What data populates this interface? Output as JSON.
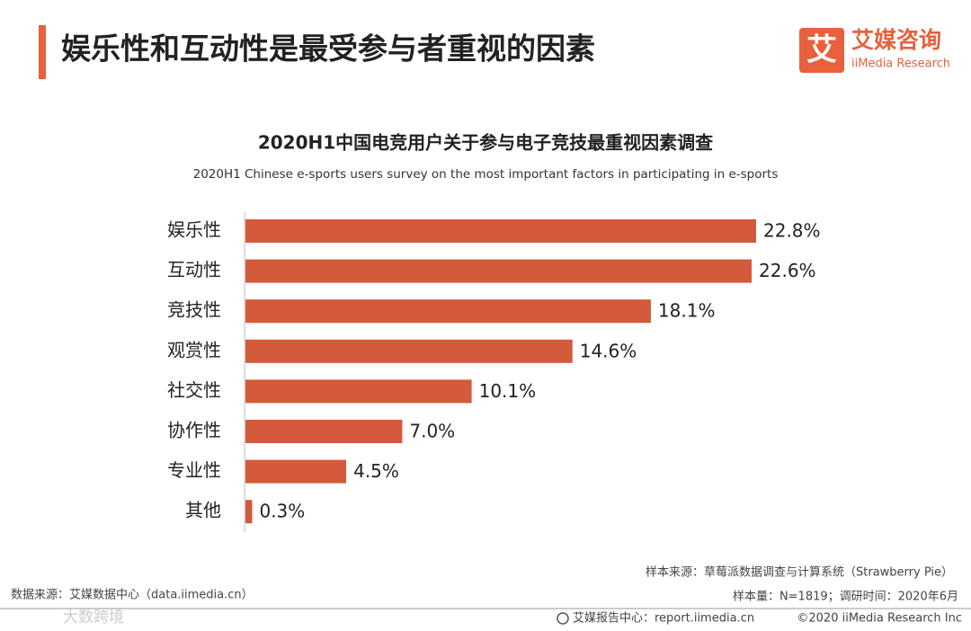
{
  "header": {
    "title": "娱乐性和互动性是最受参与者重视的因素"
  },
  "logo": {
    "mark": "艾",
    "name": "艾媒咨询",
    "english": "iiMedia Research"
  },
  "chart_data": {
    "type": "bar",
    "orientation": "horizontal",
    "title": "2020H1中国电竞用户关于参与电子竞技最重视因素调查",
    "subtitle": "2020H1 Chinese e-sports users survey on the most important factors in participating in e-sports",
    "categories": [
      "娱乐性",
      "互动性",
      "竞技性",
      "观赏性",
      "社交性",
      "协作性",
      "专业性",
      "其他"
    ],
    "values": [
      22.8,
      22.6,
      18.1,
      14.6,
      10.1,
      7.0,
      4.5,
      0.3
    ],
    "value_labels": [
      "22.8%",
      "22.6%",
      "18.1%",
      "14.6%",
      "10.1%",
      "7.0%",
      "4.5%",
      "0.3%"
    ],
    "color": "#d35a3b"
  },
  "footer": {
    "data_source": "数据来源：艾媒数据中心（data.iimedia.cn）",
    "sample_source": "样本来源：草莓派数据调查与计算系统（Strawberry Pie）",
    "sample_size": "样本量：N=1819；调研时间：2020年6月",
    "report_center": "艾媒报告中心：report.iimedia.cn",
    "copyright": "©2020 iiMedia Research Inc",
    "watermark": "大数跨境"
  }
}
